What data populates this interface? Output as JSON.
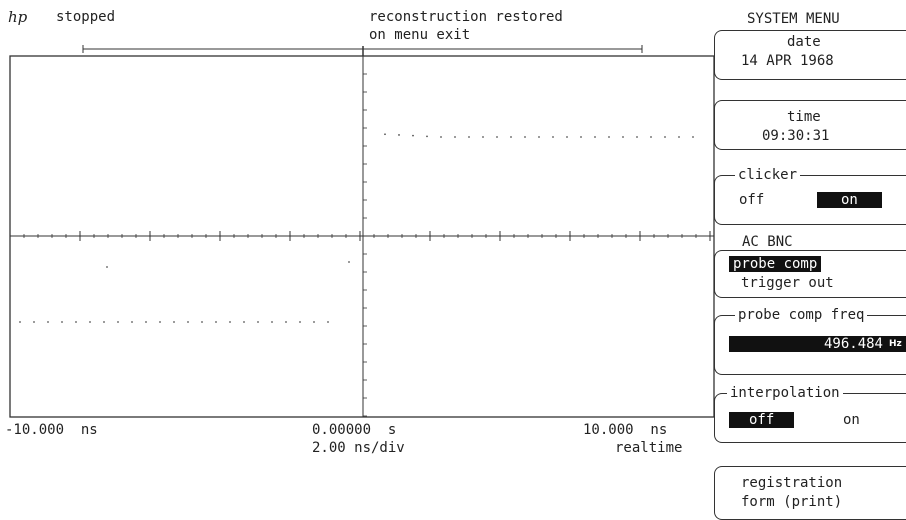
{
  "header": {
    "logo": "hp",
    "status": "stopped",
    "message_line1": "reconstruction restored",
    "message_line2": "on menu exit"
  },
  "graticule": {
    "left_time": "-10.000  ns",
    "center_time": "0.00000  s",
    "right_time": "10.000  ns",
    "timebase": "2.00 ns/div",
    "mode": "realtime",
    "trace_color": "#555555",
    "grid_color": "#333333"
  },
  "menu": {
    "title": "SYSTEM MENU",
    "date_label": "date",
    "date_value": "14 APR 1968",
    "time_label": "time",
    "time_value": "09:30:31",
    "clicker_label": "clicker",
    "clicker_off": "off",
    "clicker_on": "on",
    "clicker_selected": "on",
    "ac_bnc_label": "AC BNC",
    "ac_bnc_probe": "probe comp",
    "ac_bnc_trigger": "trigger out",
    "ac_bnc_selected": "probe comp",
    "freq_label": "probe comp freq",
    "freq_value": "496.484",
    "freq_unit": "Hz",
    "interp_label": "interpolation",
    "interp_off": "off",
    "interp_on": "on",
    "interp_selected": "off",
    "reg_line1": "registration",
    "reg_line2": "form (print)"
  }
}
